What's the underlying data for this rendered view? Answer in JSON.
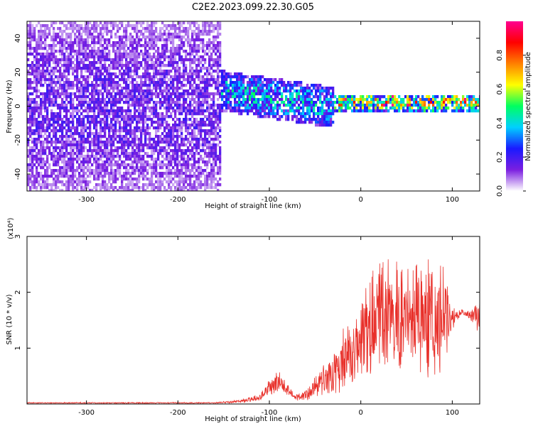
{
  "title": "C2E2.2023.099.22.30.G05",
  "chart_data": [
    {
      "type": "heatmap",
      "xlabel": "Height of straight line (km)",
      "ylabel": "Frequency (Hz)",
      "xlim": [
        -365,
        130
      ],
      "ylim": [
        -50,
        50
      ],
      "xticks": [
        -300,
        -200,
        -100,
        0,
        100
      ],
      "yticks": [
        -40,
        -20,
        0,
        20,
        40
      ],
      "colorbar": {
        "label": "Normalized spectral amplitude",
        "range": [
          0,
          1
        ],
        "ticks": [
          0.0,
          0.2,
          0.4,
          0.6,
          0.8
        ],
        "colormap": [
          "#ffffff",
          "#7b1fe0",
          "#1a1aff",
          "#00d0ff",
          "#00ff60",
          "#ffff00",
          "#ff8000",
          "#ff0000",
          "#ff0090"
        ]
      },
      "regions": [
        {
          "x_range": [
            -365,
            -155
          ],
          "freq_center": 0,
          "freq_halfwidth": 50,
          "amplitude": 0.15
        },
        {
          "x_range": [
            -155,
            -30
          ],
          "freq_center_start": 10,
          "freq_center_end": 0,
          "freq_halfwidth": 12,
          "amplitude": 0.35
        },
        {
          "x_range": [
            -30,
            130
          ],
          "freq_center": 3,
          "freq_halfwidth": 5,
          "amplitude": 0.6
        }
      ]
    },
    {
      "type": "line",
      "xlabel": "Height of straight line (km)",
      "ylabel": "SNR (10 * v/v)",
      "y_multiplier": "(x10⁴)",
      "xlim": [
        -365,
        130
      ],
      "ylim": [
        0,
        3
      ],
      "xticks": [
        -300,
        -200,
        -100,
        0,
        100
      ],
      "yticks": [
        1,
        2,
        3
      ],
      "color": "#e8302a",
      "series": [
        {
          "x": [
            -365,
            -300,
            -200,
            -160,
            -130,
            -110,
            -100,
            -90,
            -80,
            -70,
            -60,
            -50,
            -40,
            -30,
            -20,
            -10,
            0,
            10,
            20,
            30,
            40,
            50,
            60,
            70,
            80,
            90,
            100,
            110,
            120,
            130
          ],
          "mean": [
            0.02,
            0.02,
            0.02,
            0.02,
            0.05,
            0.12,
            0.3,
            0.4,
            0.25,
            0.12,
            0.18,
            0.28,
            0.4,
            0.55,
            0.8,
            0.95,
            1.2,
            1.4,
            1.6,
            1.55,
            1.55,
            1.6,
            1.65,
            1.6,
            1.55,
            1.5,
            1.55,
            1.65,
            1.6,
            1.6
          ],
          "spread": [
            0.01,
            0.01,
            0.01,
            0.01,
            0.03,
            0.06,
            0.15,
            0.18,
            0.1,
            0.06,
            0.12,
            0.2,
            0.3,
            0.45,
            0.5,
            0.55,
            0.7,
            0.8,
            0.9,
            0.9,
            0.95,
            0.95,
            1.0,
            1.0,
            1.0,
            0.9,
            0.2,
            0.05,
            0.1,
            0.3
          ]
        }
      ]
    }
  ]
}
